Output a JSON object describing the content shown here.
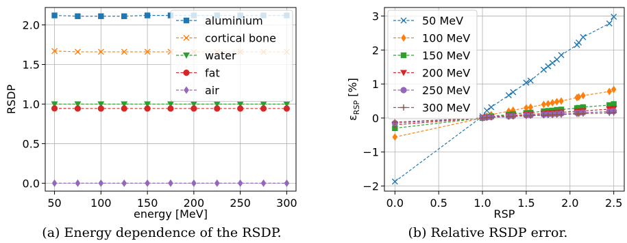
{
  "colors": {
    "blue": "#1f77b4",
    "orange": "#ff7f0e",
    "green": "#2ca02c",
    "red": "#d62728",
    "purple": "#9467bd",
    "brown": "#8c564b",
    "grid": "#b0b0b0"
  },
  "chart_data": [
    {
      "type": "line",
      "caption": "(a) Energy dependence of the RSDP.",
      "xlabel": "energy [MeV]",
      "ylabel": "RSDP",
      "xlim": [
        40,
        310
      ],
      "ylim": [
        -0.1,
        2.22
      ],
      "xticks": [
        50,
        100,
        150,
        200,
        250,
        300
      ],
      "xtick_labels": [
        "50",
        "100",
        "150",
        "200",
        "250",
        "300"
      ],
      "yticks": [
        0.0,
        0.5,
        1.0,
        1.5,
        2.0
      ],
      "ytick_labels": [
        "0.0",
        "0.5",
        "1.0",
        "1.5",
        "2.0"
      ],
      "grid": true,
      "legend_position": "upper right",
      "x": [
        50,
        75,
        100,
        125,
        150,
        175,
        200,
        225,
        250,
        275,
        300
      ],
      "series": [
        {
          "name": "aluminium",
          "color": "blue",
          "marker": "square",
          "values": [
            2.12,
            2.11,
            2.11,
            2.11,
            2.12,
            2.12,
            2.12,
            2.12,
            2.12,
            2.12,
            2.12
          ]
        },
        {
          "name": "cortical bone",
          "color": "orange",
          "marker": "x",
          "values": [
            1.67,
            1.66,
            1.66,
            1.66,
            1.66,
            1.66,
            1.66,
            1.66,
            1.66,
            1.66,
            1.66
          ]
        },
        {
          "name": "water",
          "color": "green",
          "marker": "triangle-down",
          "values": [
            1.0,
            1.0,
            1.0,
            1.0,
            1.0,
            1.0,
            1.0,
            1.0,
            1.0,
            1.0,
            1.0
          ]
        },
        {
          "name": "fat",
          "color": "red",
          "marker": "circle",
          "values": [
            0.945,
            0.944,
            0.944,
            0.944,
            0.944,
            0.944,
            0.944,
            0.944,
            0.944,
            0.944,
            0.944
          ]
        },
        {
          "name": "air",
          "color": "purple",
          "marker": "diamond",
          "values": [
            0.0,
            0.0,
            0.0,
            0.0,
            0.0,
            0.0,
            0.0,
            0.0,
            0.0,
            0.0,
            0.0
          ]
        }
      ]
    },
    {
      "type": "line",
      "caption": "(b) Relative RSDP error.",
      "xlabel": "RSP",
      "ylabel": "ε_RSP [%]",
      "ylabel_main": "ε",
      "ylabel_sub": "RSP",
      "ylabel_unit": " [%]",
      "xlim": [
        -0.12,
        2.62
      ],
      "ylim": [
        -2.15,
        3.25
      ],
      "xticks": [
        0.0,
        0.5,
        1.0,
        1.5,
        2.0,
        2.5
      ],
      "xtick_labels": [
        "0.0",
        "0.5",
        "1.0",
        "1.5",
        "2.0",
        "2.5"
      ],
      "yticks": [
        -2,
        -1,
        0,
        1,
        2,
        3
      ],
      "ytick_labels": [
        "−2",
        "−1",
        "0",
        "1",
        "2",
        "3"
      ],
      "grid": true,
      "legend_position": "upper left",
      "x": [
        0.0,
        1.0,
        1.05,
        1.1,
        1.3,
        1.35,
        1.5,
        1.55,
        1.7,
        1.75,
        1.8,
        1.85,
        1.9,
        2.08,
        2.1,
        2.15,
        2.45,
        2.5
      ],
      "series": [
        {
          "name": "50 MeV",
          "color": "blue",
          "marker": "x",
          "values": [
            -1.87,
            0.05,
            0.22,
            0.32,
            0.67,
            0.76,
            1.04,
            1.1,
            1.42,
            1.52,
            1.62,
            1.72,
            1.85,
            2.15,
            2.22,
            2.38,
            2.78,
            2.98
          ]
        },
        {
          "name": "100 MeV",
          "color": "orange",
          "marker": "diamond",
          "values": [
            -0.56,
            0.0,
            0.06,
            0.1,
            0.2,
            0.23,
            0.3,
            0.32,
            0.4,
            0.42,
            0.45,
            0.48,
            0.5,
            0.6,
            0.62,
            0.66,
            0.78,
            0.84
          ]
        },
        {
          "name": "150 MeV",
          "color": "green",
          "marker": "square",
          "values": [
            -0.3,
            0.0,
            0.03,
            0.05,
            0.1,
            0.12,
            0.15,
            0.16,
            0.2,
            0.21,
            0.22,
            0.24,
            0.25,
            0.29,
            0.3,
            0.32,
            0.38,
            0.41
          ]
        },
        {
          "name": "200 MeV",
          "color": "red",
          "marker": "triangle-down",
          "values": [
            -0.2,
            0.0,
            0.02,
            0.03,
            0.07,
            0.08,
            0.1,
            0.11,
            0.13,
            0.14,
            0.15,
            0.16,
            0.17,
            0.2,
            0.2,
            0.21,
            0.26,
            0.28
          ]
        },
        {
          "name": "250 MeV",
          "color": "purple",
          "marker": "circle",
          "values": [
            -0.15,
            0.0,
            0.02,
            0.03,
            0.05,
            0.06,
            0.08,
            0.08,
            0.1,
            0.11,
            0.11,
            0.12,
            0.13,
            0.15,
            0.15,
            0.16,
            0.19,
            0.2
          ]
        },
        {
          "name": "300 MeV",
          "color": "brown",
          "marker": "plus",
          "values": [
            -0.12,
            0.0,
            0.01,
            0.02,
            0.04,
            0.05,
            0.06,
            0.07,
            0.08,
            0.09,
            0.09,
            0.1,
            0.1,
            0.12,
            0.12,
            0.13,
            0.15,
            0.16
          ]
        }
      ]
    }
  ]
}
